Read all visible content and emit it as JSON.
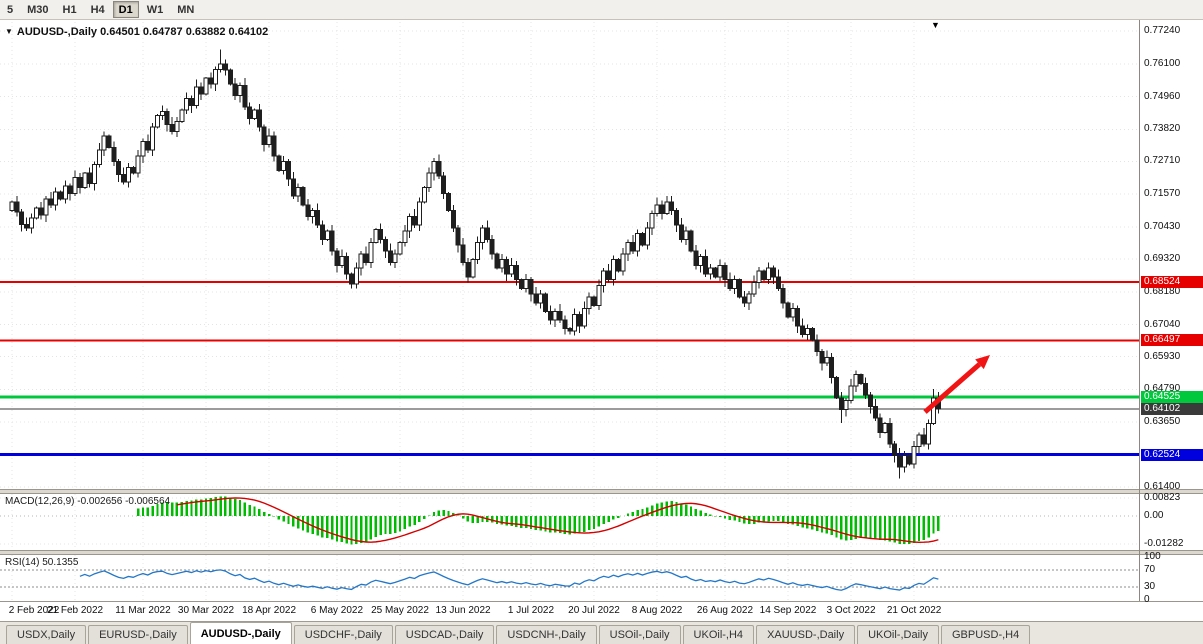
{
  "toolbar": {
    "items": [
      {
        "label": "5",
        "active": false
      },
      {
        "label": "M30",
        "active": false
      },
      {
        "label": "H1",
        "active": false
      },
      {
        "label": "H4",
        "active": false
      },
      {
        "label": "D1",
        "active": true
      },
      {
        "label": "W1",
        "active": false
      },
      {
        "label": "MN",
        "active": false
      }
    ]
  },
  "chart": {
    "title_symbol": "AUDUSD-,Daily",
    "title_ohlc": "0.64501 0.64787 0.63882 0.64102",
    "macd_label": "MACD(12,26,9)",
    "macd_values": "-0.002656 -0.006564",
    "rsi_label": "RSI(14)",
    "rsi_value": "50.1355",
    "shift_marker": "▼"
  },
  "chart_data": {
    "type": "candlestick",
    "symbol": "AUDUSD-",
    "timeframe": "Daily",
    "price_axis": {
      "min": 0.614,
      "max": 0.7724,
      "ticks": [
        "0.77240",
        "0.76100",
        "0.74960",
        "0.73820",
        "0.72710",
        "0.71570",
        "0.70430",
        "0.69320",
        "0.68180",
        "0.67040",
        "0.65930",
        "0.64790",
        "0.63650",
        "0.62540",
        "0.61400"
      ]
    },
    "open_first": 0.71,
    "closes": [
      0.713,
      0.7095,
      0.7052,
      0.704,
      0.7075,
      0.711,
      0.7085,
      0.714,
      0.712,
      0.7165,
      0.714,
      0.7185,
      0.716,
      0.7215,
      0.718,
      0.723,
      0.7195,
      0.726,
      0.731,
      0.736,
      0.732,
      0.727,
      0.7225,
      0.72,
      0.725,
      0.723,
      0.729,
      0.734,
      0.731,
      0.739,
      0.743,
      0.7445,
      0.74,
      0.7375,
      0.741,
      0.745,
      0.749,
      0.7465,
      0.753,
      0.7505,
      0.756,
      0.754,
      0.759,
      0.761,
      0.7589,
      0.754,
      0.75,
      0.7535,
      0.746,
      0.742,
      0.745,
      0.739,
      0.733,
      0.736,
      0.729,
      0.724,
      0.727,
      0.721,
      0.715,
      0.718,
      0.712,
      0.708,
      0.71,
      0.705,
      0.7,
      0.703,
      0.696,
      0.691,
      0.694,
      0.688,
      0.6845,
      0.69,
      0.695,
      0.692,
      0.699,
      0.7035,
      0.7,
      0.696,
      0.692,
      0.695,
      0.699,
      0.703,
      0.708,
      0.705,
      0.713,
      0.718,
      0.723,
      0.727,
      0.722,
      0.716,
      0.71,
      0.704,
      0.698,
      0.692,
      0.687,
      0.693,
      0.699,
      0.704,
      0.7,
      0.695,
      0.69,
      0.693,
      0.688,
      0.691,
      0.686,
      0.683,
      0.686,
      0.681,
      0.678,
      0.681,
      0.675,
      0.672,
      0.675,
      0.672,
      0.669,
      0.6682,
      0.674,
      0.67,
      0.676,
      0.68,
      0.677,
      0.684,
      0.689,
      0.686,
      0.693,
      0.689,
      0.695,
      0.699,
      0.696,
      0.702,
      0.698,
      0.704,
      0.709,
      0.712,
      0.709,
      0.713,
      0.71,
      0.705,
      0.7,
      0.703,
      0.696,
      0.691,
      0.694,
      0.688,
      0.69,
      0.687,
      0.691,
      0.686,
      0.683,
      0.686,
      0.68,
      0.678,
      0.681,
      0.685,
      0.689,
      0.686,
      0.69,
      0.687,
      0.683,
      0.678,
      0.673,
      0.676,
      0.67,
      0.667,
      0.669,
      0.665,
      0.661,
      0.657,
      0.659,
      0.652,
      0.645,
      0.641,
      0.644,
      0.649,
      0.653,
      0.65,
      0.646,
      0.642,
      0.638,
      0.633,
      0.636,
      0.629,
      0.625,
      0.621,
      0.625,
      0.622,
      0.628,
      0.632,
      0.629,
      0.636,
      0.645,
      0.64102
    ],
    "special_wicks": [
      {
        "i": 43,
        "h": 0.766
      },
      {
        "i": 70,
        "l": 0.6829
      },
      {
        "i": 87,
        "h": 0.7283
      },
      {
        "i": 94,
        "l": 0.685
      },
      {
        "i": 115,
        "l": 0.667
      },
      {
        "i": 135,
        "h": 0.715
      },
      {
        "i": 171,
        "l": 0.6363
      },
      {
        "i": 183,
        "l": 0.617
      },
      {
        "i": 190,
        "h": 0.648
      }
    ],
    "levels": [
      {
        "price": 0.68524,
        "label": "0.68524",
        "color": "#E60000",
        "width": 2,
        "current": false
      },
      {
        "price": 0.66497,
        "label": "0.66497",
        "color": "#E60000",
        "width": 2,
        "current": false
      },
      {
        "price": 0.64525,
        "label": "0.64525",
        "color": "#00C83C",
        "width": 3,
        "current": false
      },
      {
        "price": 0.64102,
        "label": "0.64102",
        "color": "#3A3A3A",
        "width": 1,
        "current": true
      },
      {
        "price": 0.62524,
        "label": "0.62524",
        "color": "#0000DE",
        "width": 3,
        "current": false
      }
    ],
    "macd_axis": [
      "0.00823",
      "0.00",
      "-0.01282"
    ],
    "rsi_axis": [
      "100",
      "70",
      "30",
      "0"
    ],
    "rsi_levels": [
      70,
      30
    ],
    "date_labels": [
      {
        "label": "2 Feb 2022",
        "i": 0
      },
      {
        "label": "21 Feb 2022",
        "i": 13
      },
      {
        "label": "11 Mar 2022",
        "i": 27
      },
      {
        "label": "30 Mar 2022",
        "i": 40
      },
      {
        "label": "18 Apr 2022",
        "i": 53
      },
      {
        "label": "6 May 2022",
        "i": 67
      },
      {
        "label": "25 May 2022",
        "i": 80
      },
      {
        "label": "13 Jun 2022",
        "i": 93
      },
      {
        "label": "1 Jul 2022",
        "i": 107
      },
      {
        "label": "20 Jul 2022",
        "i": 120
      },
      {
        "label": "8 Aug 2022",
        "i": 133
      },
      {
        "label": "26 Aug 2022",
        "i": 147
      },
      {
        "label": "14 Sep 2022",
        "i": 160
      },
      {
        "label": "3 Oct 2022",
        "i": 173
      },
      {
        "label": "21 Oct 2022",
        "i": 186
      }
    ],
    "annotation_arrow": {
      "color": "#F01414",
      "tail": [
        925,
        392
      ],
      "tip": [
        990,
        335
      ]
    },
    "colors": {
      "bull": "#FFFFFF",
      "bear": "#1E1E1E",
      "outline": "#1E1E1E",
      "macd_hist": "#00BC00",
      "macd_signal": "#D40000",
      "rsi_line": "#2377C9",
      "grid": "#E4E4E4"
    }
  },
  "tabs": {
    "active_index": 2,
    "items": [
      {
        "label": "USDX,Daily"
      },
      {
        "label": "EURUSD-,Daily"
      },
      {
        "label": "AUDUSD-,Daily"
      },
      {
        "label": "USDCHF-,Daily"
      },
      {
        "label": "USDCAD-,Daily"
      },
      {
        "label": "USDCNH-,Daily"
      },
      {
        "label": "USOil-,Daily"
      },
      {
        "label": "UKOil-,H4"
      },
      {
        "label": "XAUUSD-,Daily"
      },
      {
        "label": "UKOil-,Daily"
      },
      {
        "label": "GBPUSD-,H4"
      }
    ]
  }
}
